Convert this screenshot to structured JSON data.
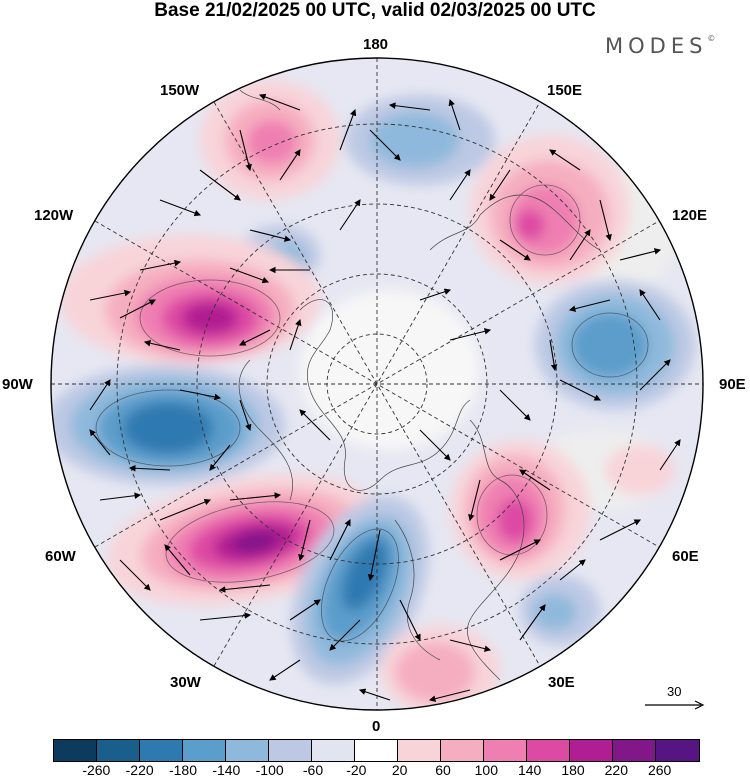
{
  "title": "Base 21/02/2025 00 UTC, valid 02/03/2025 00 UTC",
  "brand": "MODES",
  "brand_mark": "©",
  "longitude_labels": {
    "top": "180",
    "bottom": "0",
    "left": "90W",
    "right": "90E",
    "upper_left_1": "150W",
    "upper_left_2": "120W",
    "lower_left_1": "60W",
    "lower_left_2": "30W",
    "upper_right_1": "150E",
    "upper_right_2": "120E",
    "lower_right_1": "60E",
    "lower_right_2": "30E"
  },
  "reference_vector": "30",
  "colorbar": {
    "colors": [
      "#0d3b5e",
      "#1a5e8c",
      "#2f79b1",
      "#5b9dcb",
      "#8fb9dc",
      "#bdc9e4",
      "#e3e4f2",
      "#ffffff",
      "#f8d4d9",
      "#f5aec0",
      "#ef7fb2",
      "#dd4aa3",
      "#b11e93",
      "#811789",
      "#561583"
    ],
    "labels": [
      "-260",
      "-220",
      "-180",
      "-140",
      "-100",
      "-60",
      "-20",
      "20",
      "60",
      "100",
      "140",
      "180",
      "220",
      "260"
    ]
  }
}
